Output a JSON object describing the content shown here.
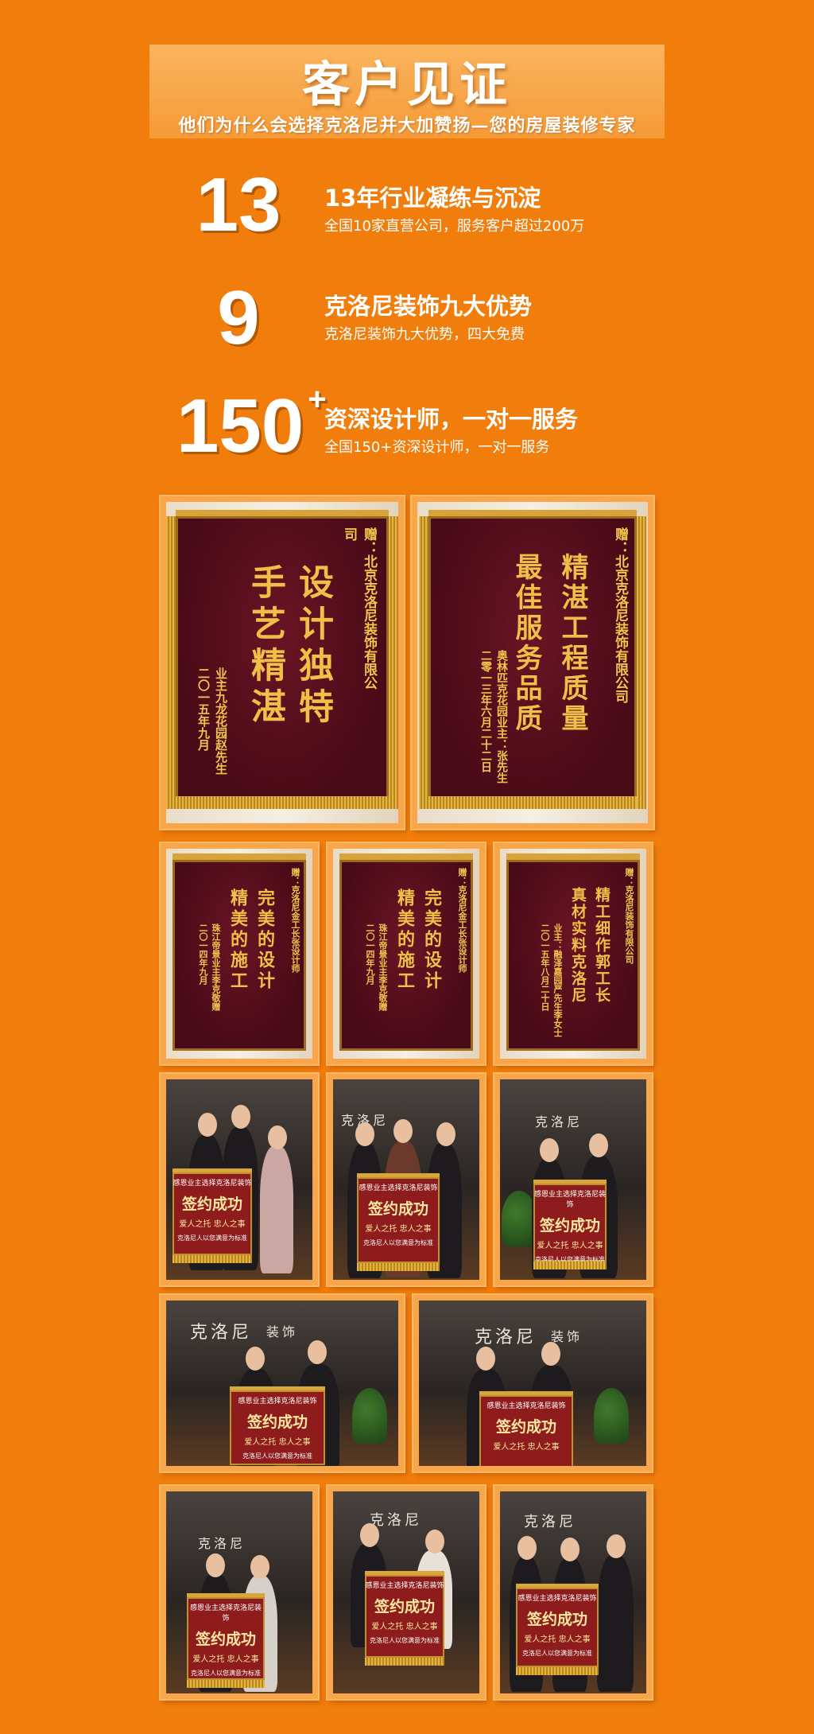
{
  "header": {
    "title": "客户见证",
    "subtitle": "他们为什么会选择克洛尼并大加赞扬—您的房屋装修专家"
  },
  "stats": [
    {
      "number": "13",
      "suffix": "",
      "heading": "13年行业凝练与沉淀",
      "sub": "全国10家直营公司，服务客户超过200万"
    },
    {
      "number": "9",
      "suffix": "",
      "heading": "克洛尼装饰九大优势",
      "sub": "克洛尼装饰九大优势，四大免费"
    },
    {
      "number": "150",
      "suffix": "+",
      "heading": "资深设计师，一对一服务",
      "sub": "全国150+资深设计师，一对一服务"
    }
  ],
  "pennants_large": [
    {
      "recipient": "赠：北京克洛尼装饰有限公司",
      "line1": "设计独特",
      "line2": "手艺精湛",
      "donor": "业主九龙花园赵先生",
      "date": "二〇一五年九月"
    },
    {
      "recipient": "赠：北京克洛尼装饰有限公司",
      "line1": "精湛工程质量",
      "line2": "最佳服务品质",
      "donor": "奥林匹克花园业主：张先生",
      "date": "二零一三年六月二十二日"
    }
  ],
  "pennants_small": [
    {
      "recipient": "赠：克洛尼金工长张设计师",
      "line1": "完美的设计",
      "line2": "精美的施工",
      "donor": "珠江帝景业主李克敬赠",
      "date": "二〇一四年九月"
    },
    {
      "recipient": "赠：克洛尼金工长张设计师",
      "line1": "完美的设计",
      "line2": "精美的施工",
      "donor": "珠江帝景业主李克敬赠",
      "date": "二〇一四年九月"
    },
    {
      "recipient": "赠：克洛尼装饰有限公司",
      "line1": "精工细作郭工长",
      "line2": "真材实料克洛尼",
      "donor": "业主：融泽嘉园严先生李女士",
      "date": "二〇一五年八月二十日"
    }
  ],
  "customer_pennant": {
    "line1": "感恩业主选择克洛尼装饰",
    "line2": "签约成功",
    "line3": "爱人之托  忠人之事",
    "line4": "克洛尼人以您满意为标准"
  },
  "signage": {
    "brand": "克洛尼",
    "suffix": "装饰"
  }
}
